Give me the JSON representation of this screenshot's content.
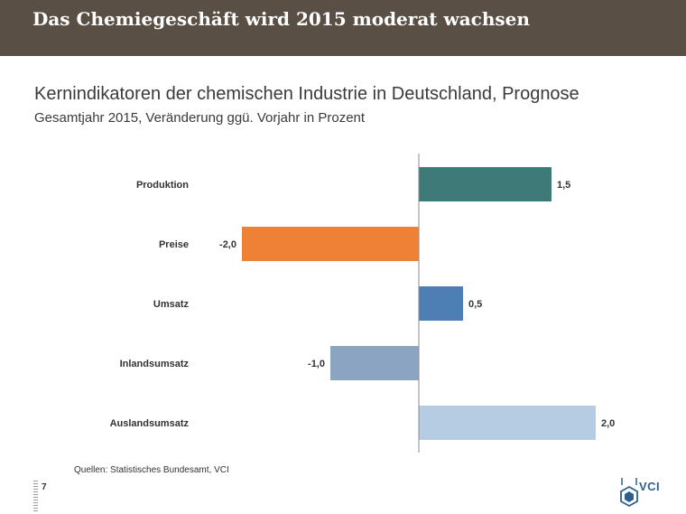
{
  "banner": {
    "title": "Das Chemiegeschäft wird 2015 moderat wachsen"
  },
  "header": {
    "title": "Kernindikatoren der chemischen Industrie in Deutschland, Prognose",
    "subtitle": "Gesamtjahr 2015, Veränderung ggü. Vorjahr in Prozent"
  },
  "chart_data": {
    "type": "bar",
    "orientation": "horizontal",
    "title": "Kernindikatoren der chemischen Industrie in Deutschland, Prognose",
    "subtitle": "Gesamtjahr 2015, Veränderung ggü. Vorjahr in Prozent",
    "categories": [
      "Produktion",
      "Preise",
      "Umsatz",
      "Inlandsumsatz",
      "Auslandsumsatz"
    ],
    "values": [
      1.5,
      -2.0,
      0.5,
      -1.0,
      2.0
    ],
    "value_labels": [
      "1,5",
      "-2,0",
      "0,5",
      "-1,0",
      "2,0"
    ],
    "colors": [
      "#3d7a78",
      "#ef8137",
      "#4d7fb5",
      "#8aa4c2",
      "#b5cce2"
    ],
    "xlim": [
      -2,
      2
    ],
    "xlabel": "",
    "ylabel": "",
    "grid": false,
    "legend": false
  },
  "footer": {
    "source": "Quellen: Statistisches Bundesamt, VCI",
    "page_number": "7",
    "logo_text": "VCI"
  }
}
